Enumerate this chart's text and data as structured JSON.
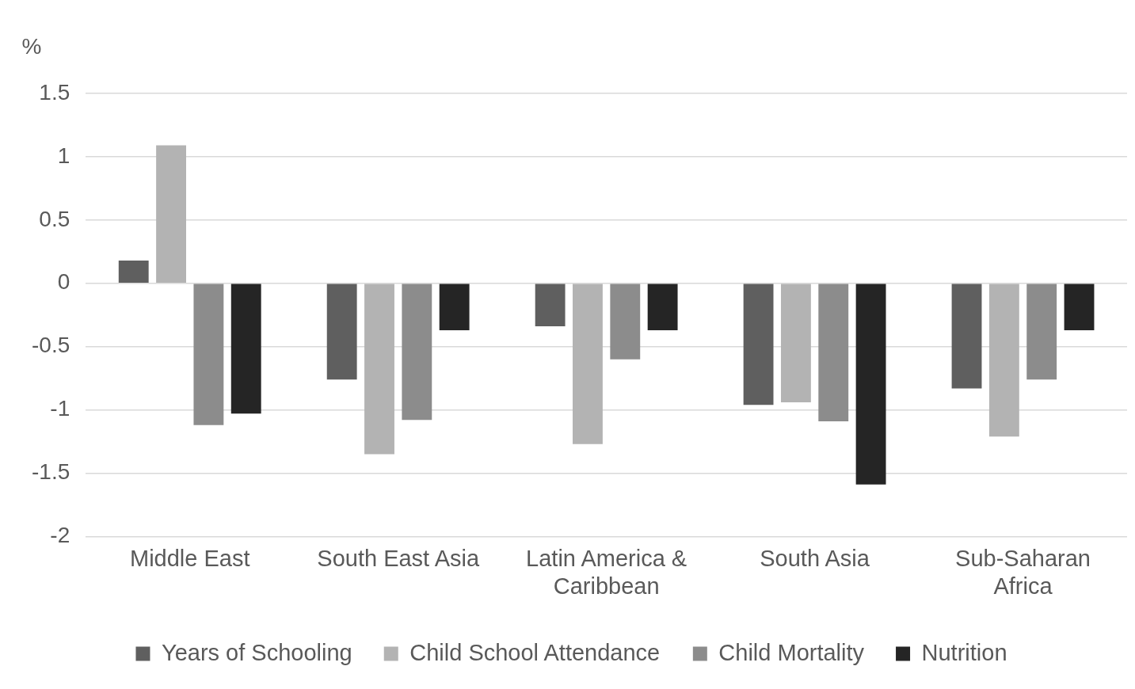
{
  "chart_data": {
    "type": "bar",
    "ylabel": "%",
    "categories": [
      "Middle East",
      "South East Asia",
      "Latin America & Caribbean",
      "South Asia",
      "Sub-Saharan Africa"
    ],
    "series": [
      {
        "name": "Years of Schooling",
        "color": "#5f5f5f",
        "values": [
          0.18,
          -0.76,
          -0.34,
          -0.96,
          -0.83
        ]
      },
      {
        "name": "Child School Attendance",
        "color": "#b3b3b3",
        "values": [
          1.09,
          -1.35,
          -1.27,
          -0.94,
          -1.21
        ]
      },
      {
        "name": "Child Mortality",
        "color": "#8c8c8c",
        "values": [
          -1.12,
          -1.08,
          -0.6,
          -1.09,
          -0.76
        ]
      },
      {
        "name": "Nutrition",
        "color": "#252525",
        "values": [
          -1.03,
          -0.37,
          -0.37,
          -1.59,
          -0.37
        ]
      }
    ],
    "ylim": [
      -2,
      1.5
    ],
    "yticks": [
      -2,
      -1.5,
      -1,
      -0.5,
      0,
      0.5,
      1,
      1.5
    ],
    "grid": "y",
    "legend": "bottom"
  }
}
